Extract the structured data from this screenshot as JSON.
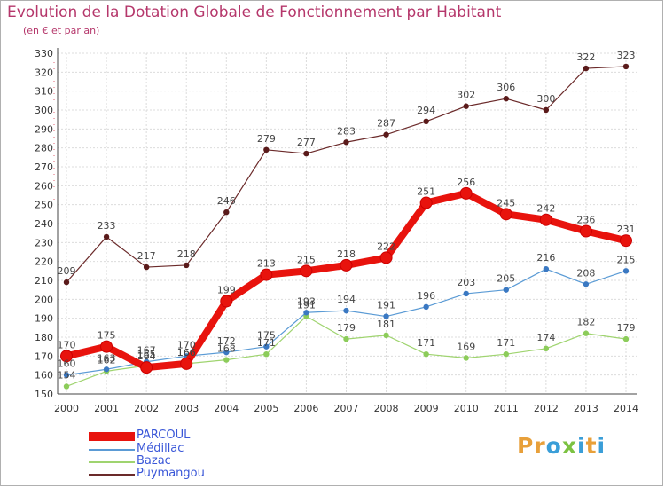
{
  "header": {
    "title": "Evolution de la Dotation Globale de Fonctionnement par Habitant",
    "subtitle": "(en € et par an)"
  },
  "logo": {
    "text": "Proxiti",
    "colors": [
      "#e8a03a",
      "#e8a03a",
      "#3a9ed8",
      "#7cc242",
      "#3a9ed8",
      "#e8a03a",
      "#3a9ed8"
    ]
  },
  "chart_data": {
    "type": "line",
    "title": "Evolution de la Dotation Globale de Fonctionnement par Habitant",
    "subtitle": "(en € et par an)",
    "xlabel": "",
    "ylabel": "",
    "x": [
      "2000",
      "2001",
      "2002",
      "2003",
      "2004",
      "2005",
      "2006",
      "2007",
      "2008",
      "2009",
      "2010",
      "2011",
      "2012",
      "2013",
      "2014"
    ],
    "ylim": [
      150,
      330
    ],
    "yticks": [
      150,
      160,
      170,
      180,
      190,
      200,
      210,
      220,
      230,
      240,
      250,
      260,
      270,
      280,
      290,
      300,
      310,
      320,
      330
    ],
    "grid": true,
    "legend_position": "bottom-left",
    "series": [
      {
        "name": "PARCOUL",
        "color": "#e8130d",
        "values": [
          170,
          175,
          164,
          166,
          199,
          213,
          215,
          218,
          222,
          251,
          256,
          245,
          242,
          236,
          231
        ]
      },
      {
        "name": "Médillac",
        "color": "#5b9bd5",
        "values": [
          160,
          163,
          167,
          170,
          172,
          175,
          193,
          194,
          191,
          196,
          203,
          205,
          216,
          208,
          215
        ]
      },
      {
        "name": "Bazac",
        "color": "#9fd46f",
        "values": [
          154,
          162,
          165,
          166,
          168,
          171,
          191,
          179,
          181,
          171,
          169,
          171,
          174,
          182,
          179
        ]
      },
      {
        "name": "Puymangou",
        "color": "#6b2a2a",
        "values": [
          209,
          233,
          217,
          218,
          246,
          279,
          277,
          283,
          287,
          294,
          302,
          306,
          300,
          322,
          323
        ]
      }
    ]
  }
}
